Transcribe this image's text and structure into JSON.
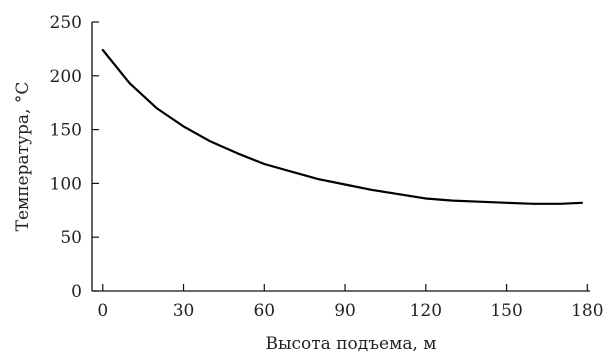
{
  "chart_data": {
    "type": "line",
    "title": "",
    "xlabel": "Высота подъема, м",
    "ylabel": "Температура, °С",
    "xlim": [
      -4,
      181
    ],
    "ylim": [
      0,
      250
    ],
    "xticks": [
      0,
      30,
      60,
      90,
      120,
      150,
      180
    ],
    "yticks": [
      0,
      50,
      100,
      150,
      200,
      250
    ],
    "grid": false,
    "legend": "none",
    "series": [
      {
        "x": [
          0,
          10,
          20,
          30,
          40,
          50,
          60,
          70,
          80,
          90,
          100,
          110,
          120,
          130,
          140,
          150,
          160,
          170,
          178
        ],
        "y": [
          224,
          193,
          170,
          153,
          139,
          128,
          118,
          111,
          104,
          99,
          94,
          90,
          86,
          84,
          83,
          82,
          81,
          81,
          82
        ],
        "color": "#000000"
      }
    ]
  }
}
